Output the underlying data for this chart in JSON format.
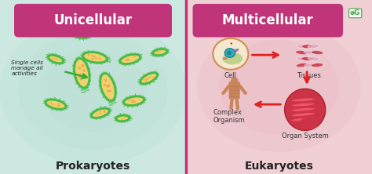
{
  "title_left": "Unicellular",
  "title_right": "Multicellular",
  "label_left": "Prokaryotes",
  "label_right": "Eukaryotes",
  "annotation_left": "Single cells\nmanage all\nactivities",
  "labels_right": [
    "Cell",
    "Tissues",
    "Complex\nOrganism",
    "Organ System"
  ],
  "bg_left": "#cce8e0",
  "bg_right": "#f0d0d5",
  "bg_left_inner": "#d8eee8",
  "title_bg": "#c0357a",
  "title_text_color": "#ffffff",
  "divider_color": "#c0357a",
  "bottom_label_color": "#222222",
  "arrow_color_left": "#3aaa3a",
  "arrow_color_right": "#dd2222",
  "bacteria_fill": "#f0d070",
  "bacteria_border": "#44bb44",
  "bacteria_inner": "#e8a040",
  "fig_width": 4.74,
  "fig_height": 2.22,
  "dpi": 100,
  "bacteria": [
    [
      2.2,
      2.9,
      0.85,
      0.38,
      -80
    ],
    [
      2.55,
      3.35,
      0.65,
      0.28,
      -10
    ],
    [
      3.5,
      3.3,
      0.55,
      0.24,
      15
    ],
    [
      4.0,
      2.75,
      0.5,
      0.22,
      30
    ],
    [
      3.6,
      2.1,
      0.55,
      0.24,
      10
    ],
    [
      2.7,
      1.75,
      0.5,
      0.22,
      20
    ],
    [
      1.5,
      2.0,
      0.55,
      0.24,
      -15
    ],
    [
      2.9,
      2.5,
      0.8,
      0.36,
      -75
    ],
    [
      2.2,
      4.0,
      0.4,
      0.18,
      -5
    ],
    [
      4.3,
      3.5,
      0.38,
      0.17,
      10
    ],
    [
      1.5,
      3.3,
      0.42,
      0.19,
      -20
    ],
    [
      3.3,
      1.6,
      0.35,
      0.16,
      5
    ]
  ]
}
